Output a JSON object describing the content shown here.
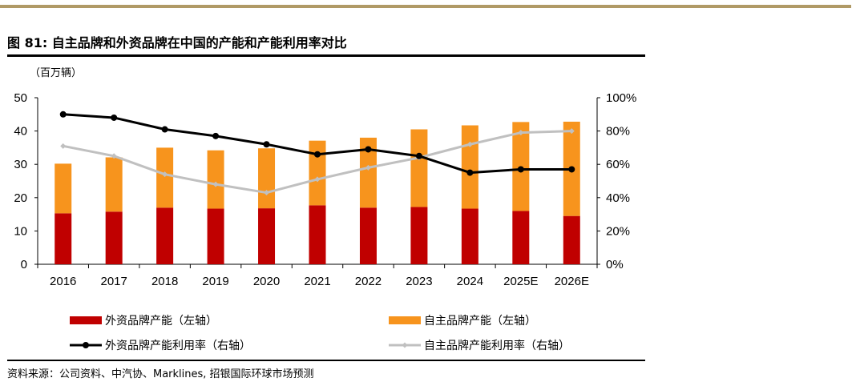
{
  "header": {
    "title": "图 81: 自主品牌和外资品牌在中国的产能和产能利用率对比"
  },
  "footer": {
    "source": "资料来源：公司资料、中汽协、Marklines, 招银国际环球市场预测"
  },
  "chart_data": {
    "type": "bar",
    "stacked": true,
    "title": "图 81: 自主品牌和外资品牌在中国的产能和产能利用率对比",
    "unit_label": "（百万辆）",
    "categories": [
      "2016",
      "2017",
      "2018",
      "2019",
      "2020",
      "2021",
      "2022",
      "2023",
      "2024",
      "2025E",
      "2026E"
    ],
    "y_left": {
      "range": [
        0,
        50
      ],
      "ticks": [
        "0",
        "10",
        "20",
        "30",
        "40",
        "50"
      ]
    },
    "y_right": {
      "range": [
        0,
        100
      ],
      "ticks": [
        "0%",
        "20%",
        "40%",
        "60%",
        "80%",
        "100%"
      ]
    },
    "bar_series": [
      {
        "name": "外资品牌产能（左轴）",
        "color": "#c00000",
        "values": [
          15.3,
          15.8,
          17.0,
          16.7,
          16.8,
          17.7,
          17.0,
          17.2,
          16.7,
          16.0,
          14.5
        ]
      },
      {
        "name": "自主品牌产能（左轴）",
        "color": "#f7941d",
        "values": [
          14.9,
          16.3,
          18.0,
          17.5,
          18.0,
          19.4,
          21.0,
          23.3,
          25.0,
          26.7,
          28.3
        ]
      }
    ],
    "line_series": [
      {
        "name": "外资品牌产能利用率（右轴）",
        "color": "#000000",
        "values": [
          90,
          88,
          81,
          77,
          72,
          66,
          69,
          65,
          55,
          57,
          57
        ]
      },
      {
        "name": "自主品牌产能利用率（右轴）",
        "color": "#c0c0c0",
        "values": [
          71,
          65,
          54,
          48,
          43,
          51,
          58,
          64,
          72,
          79,
          80
        ]
      }
    ],
    "legend_position": "bottom"
  }
}
